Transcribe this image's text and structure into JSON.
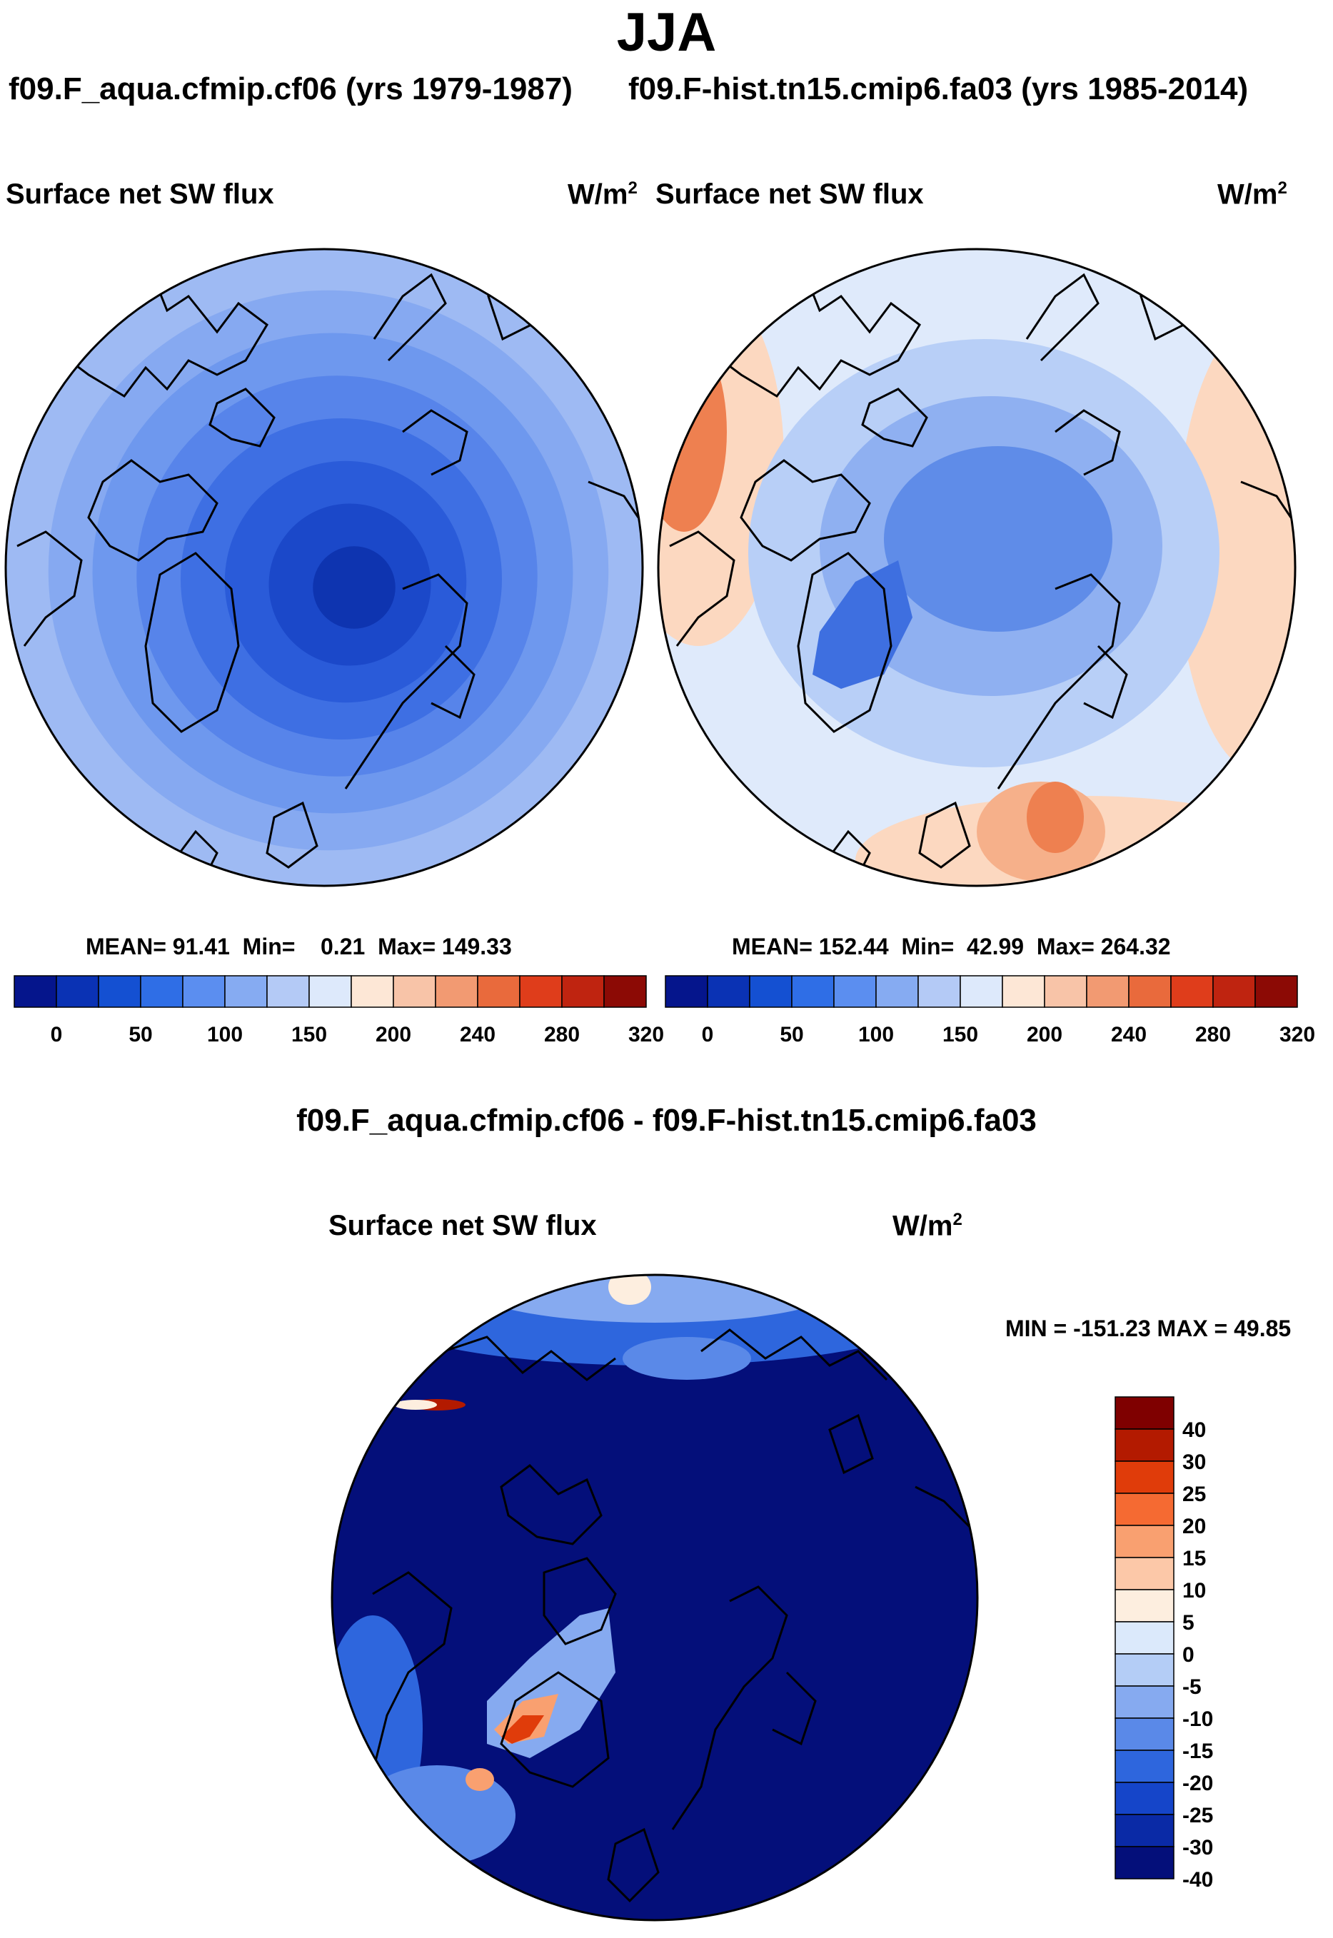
{
  "title": "JJA",
  "panels": [
    {
      "case": "f09.F_aqua.cfmip.cf06 (yrs 1979-1987)",
      "variable": "Surface net SW flux",
      "unit": "W/m",
      "unit_sup": "2",
      "stats": {
        "mean_label": "MEAN=",
        "mean": "91.41",
        "min_label": "Min=",
        "min": "0.21",
        "max_label": "Max=",
        "max": "149.33"
      }
    },
    {
      "case": "f09.F-hist.tn15.cmip6.fa03 (yrs 1985-2014)",
      "variable": "Surface net SW flux",
      "unit": "W/m",
      "unit_sup": "2",
      "stats": {
        "mean_label": "MEAN=",
        "mean": "152.44",
        "min_label": "Min=",
        "min": "42.99",
        "max_label": "Max=",
        "max": "264.32"
      }
    }
  ],
  "colorbar_top": {
    "colors": [
      "#05158c",
      "#0a32b4",
      "#1450d2",
      "#2f6ee6",
      "#5b8ef0",
      "#86abf2",
      "#b4caf6",
      "#dde9fb",
      "#fde7d6",
      "#f8c4a8",
      "#f29a72",
      "#e96a3c",
      "#df3d1b",
      "#bf2410",
      "#8c0a05"
    ],
    "tick_labels": [
      "0",
      "50",
      "100",
      "150",
      "200",
      "240",
      "280",
      "320"
    ]
  },
  "difference": {
    "title": "f09.F_aqua.cfmip.cf06 - f09.F-hist.tn15.cmip6.fa03",
    "variable": "Surface net SW flux",
    "unit": "W/m",
    "unit_sup": "2",
    "minmax": "MIN = -151.23 MAX =  49.85"
  },
  "colorbar_diff": {
    "colors": [
      "#7f0000",
      "#b31a00",
      "#e03c0a",
      "#f56a32",
      "#f9a070",
      "#fcc8a8",
      "#fdeedf",
      "#dbe9fb",
      "#b4cdf6",
      "#86aaf0",
      "#5a89e8",
      "#2e66dd",
      "#1545c9",
      "#0a2aa6",
      "#040f7a"
    ],
    "tick_labels": [
      "40",
      "30",
      "25",
      "20",
      "15",
      "10",
      "5",
      "0",
      "-5",
      "-10",
      "-15",
      "-20",
      "-25",
      "-30",
      "-40"
    ]
  },
  "map_colors": {
    "left_rings": [
      "#9ebaf3",
      "#86a9f1",
      "#6e98ee",
      "#5784ea",
      "#3e6fe3",
      "#2a5bd9",
      "#1b48c9",
      "#0e34b0"
    ],
    "right_outer": "#dfeafb",
    "right_inner": [
      "#b8cff7",
      "#8fb0f1",
      "#5f8ce8",
      "#3e6fe0"
    ],
    "right_warm": [
      "#fcd8c0",
      "#f6b08a",
      "#ee8050",
      "#e0582c"
    ],
    "diff_base": "#040f7a",
    "diff_mid": [
      "#2e66dd",
      "#5a89e8",
      "#86aaf0"
    ],
    "diff_warm": [
      "#fdeedf",
      "#f9a070",
      "#e03c0a",
      "#b31a00"
    ],
    "coast": "#000000"
  }
}
